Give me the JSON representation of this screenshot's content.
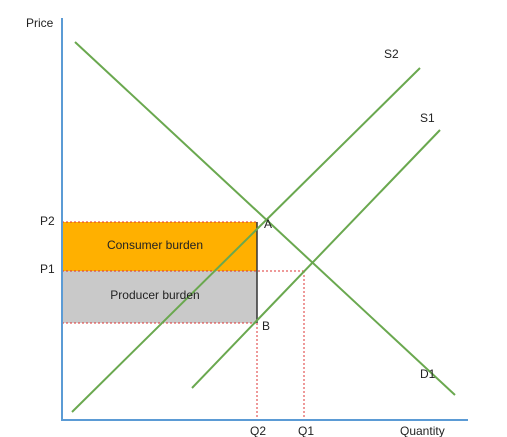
{
  "axes": {
    "y_label": "Price",
    "x_label": "Quantity"
  },
  "price_levels": [
    "P2",
    "P1"
  ],
  "quantity_levels": [
    "Q2",
    "Q1"
  ],
  "curves": {
    "supply_new": "S2",
    "supply_old": "S1",
    "demand": "D1"
  },
  "points": {
    "a": "A",
    "b": "B"
  },
  "areas": {
    "consumer": "Consumer burden",
    "producer": "Producer burden"
  }
}
